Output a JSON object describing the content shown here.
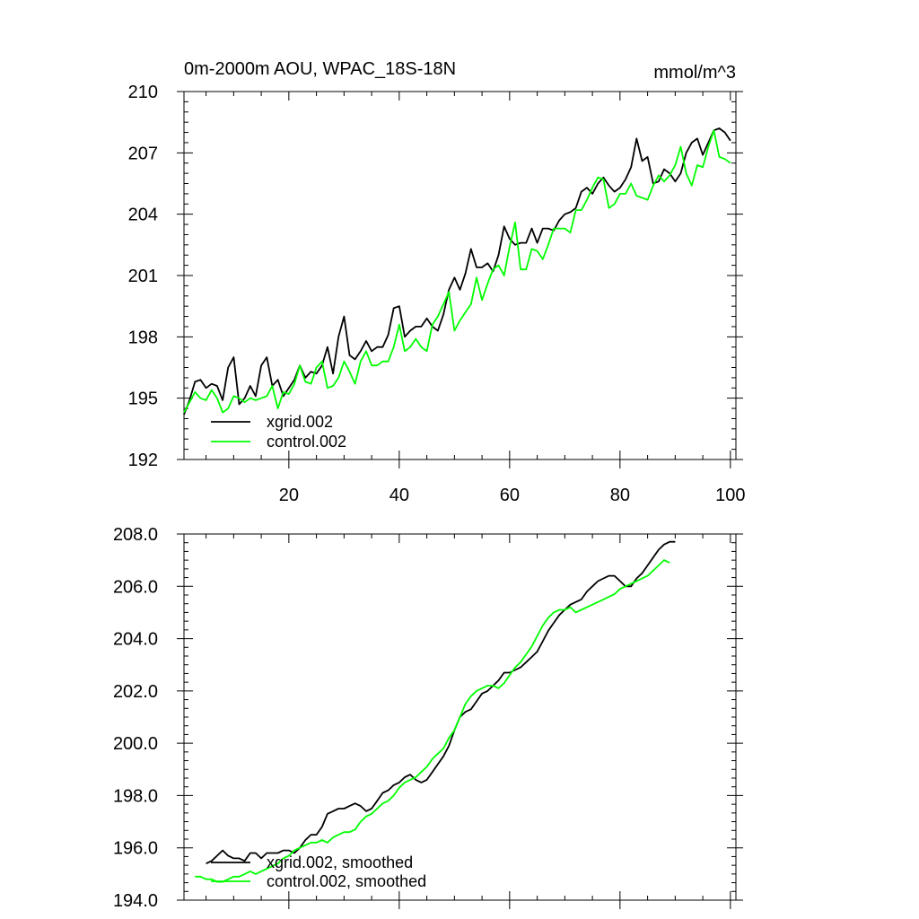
{
  "chart_data": [
    {
      "type": "line",
      "title": "0m-2000m AOU, WPAC_18S-18N",
      "units": "mmol/m^3",
      "xlabel": "",
      "ylabel": "",
      "xlim": [
        1,
        101
      ],
      "ylim": [
        192,
        210
      ],
      "xticks": [
        20,
        40,
        60,
        80,
        100
      ],
      "xtick_labels": [
        "20",
        "40",
        "60",
        "80",
        "100"
      ],
      "yticks": [
        192,
        195,
        198,
        201,
        204,
        207,
        210
      ],
      "ytick_labels": [
        "192",
        "195",
        "198",
        "201",
        "204",
        "207",
        "210"
      ],
      "legend_position": "bottom-left",
      "series": [
        {
          "name": "xgrid.002",
          "color": "#000000",
          "x_start": 1,
          "values": [
            194.2,
            194.9,
            195.8,
            195.9,
            195.5,
            195.7,
            195.6,
            194.9,
            196.5,
            197.0,
            194.7,
            195.0,
            195.6,
            195.1,
            196.6,
            197.0,
            195.6,
            195.9,
            195.1,
            195.5,
            195.9,
            196.6,
            196.0,
            196.3,
            196.2,
            196.6,
            197.5,
            196.2,
            198.0,
            199.0,
            197.1,
            196.9,
            197.3,
            197.8,
            197.3,
            197.5,
            197.5,
            198.1,
            199.4,
            199.5,
            198.0,
            198.3,
            198.5,
            198.5,
            198.9,
            198.5,
            198.3,
            199.1,
            200.3,
            200.9,
            200.3,
            201.1,
            202.3,
            201.4,
            201.4,
            201.6,
            201.2,
            202.0,
            203.4,
            202.8,
            202.5,
            202.6,
            202.6,
            203.3,
            202.6,
            203.3,
            203.3,
            203.2,
            203.7,
            204.0,
            204.1,
            204.3,
            205.1,
            205.3,
            205.0,
            205.5,
            205.8,
            205.4,
            205.1,
            205.3,
            205.7,
            206.3,
            207.7,
            206.6,
            206.8,
            205.5,
            205.6,
            206.2,
            206.0,
            205.6,
            206.0,
            207.0,
            207.5,
            207.7,
            206.9,
            207.5,
            208.1,
            208.2,
            208.0,
            207.6
          ]
        },
        {
          "name": "control.002",
          "color": "#00ff00",
          "x_start": 1,
          "values": [
            194.3,
            194.8,
            195.3,
            195.0,
            194.9,
            195.4,
            195.0,
            194.3,
            194.5,
            195.1,
            195.0,
            194.8,
            195.0,
            194.9,
            195.0,
            195.1,
            195.6,
            194.5,
            195.3,
            195.2,
            195.7,
            196.6,
            195.8,
            195.7,
            196.5,
            196.8,
            195.5,
            195.6,
            196.0,
            196.8,
            196.3,
            195.7,
            196.8,
            197.3,
            196.6,
            196.6,
            196.8,
            196.8,
            197.5,
            198.6,
            197.3,
            197.5,
            197.9,
            197.5,
            197.3,
            198.6,
            199.0,
            199.6,
            200.2,
            198.3,
            198.8,
            199.2,
            199.6,
            200.9,
            199.8,
            200.6,
            201.3,
            201.5,
            201.0,
            202.4,
            203.6,
            201.3,
            201.3,
            202.3,
            202.2,
            201.8,
            202.5,
            203.3,
            203.3,
            203.3,
            203.1,
            204.2,
            204.2,
            204.7,
            205.3,
            205.8,
            205.7,
            204.3,
            204.5,
            205.0,
            205.0,
            205.5,
            204.9,
            204.8,
            204.7,
            205.4,
            205.9,
            205.6,
            205.9,
            206.4,
            207.3,
            206.0,
            205.4,
            206.4,
            206.3,
            207.3,
            208.1,
            206.8,
            206.7,
            206.5
          ]
        }
      ]
    },
    {
      "type": "line",
      "title": "",
      "xlabel": "",
      "ylabel": "",
      "xlim": [
        1,
        101
      ],
      "ylim": [
        194,
        208
      ],
      "xticks": [
        20,
        40,
        60,
        80,
        100
      ],
      "xtick_labels": [],
      "yticks": [
        194,
        196,
        198,
        200,
        202,
        204,
        206,
        208
      ],
      "ytick_labels": [
        "194.0",
        "196.0",
        "198.0",
        "200.0",
        "202.0",
        "204.0",
        "206.0",
        "208.0"
      ],
      "legend_position": "bottom-left",
      "series": [
        {
          "name": "xgrid.002, smoothed",
          "color": "#000000",
          "x_start": 5,
          "values": [
            195.4,
            195.5,
            195.7,
            195.9,
            195.7,
            195.6,
            195.6,
            195.5,
            195.8,
            195.8,
            195.6,
            195.8,
            195.8,
            195.8,
            195.9,
            195.9,
            195.8,
            196.0,
            196.3,
            196.5,
            196.5,
            196.8,
            197.3,
            197.4,
            197.5,
            197.5,
            197.6,
            197.7,
            197.6,
            197.4,
            197.5,
            197.8,
            198.1,
            198.2,
            198.4,
            198.5,
            198.7,
            198.8,
            198.6,
            198.5,
            198.6,
            198.9,
            199.2,
            199.5,
            199.9,
            200.5,
            201.0,
            201.2,
            201.3,
            201.6,
            201.9,
            202.0,
            202.2,
            202.4,
            202.7,
            202.7,
            202.8,
            202.9,
            203.1,
            203.3,
            203.5,
            203.9,
            204.3,
            204.6,
            204.9,
            205.1,
            205.3,
            205.4,
            205.5,
            205.8,
            206.0,
            206.2,
            206.3,
            206.4,
            206.4,
            206.2,
            206.0,
            206.0,
            206.3,
            206.5,
            206.8,
            207.1,
            207.4,
            207.6,
            207.7,
            207.7
          ]
        },
        {
          "name": "control.002, smoothed",
          "color": "#00ff00",
          "x_start": 3,
          "values": [
            194.9,
            194.9,
            194.8,
            194.8,
            194.7,
            194.7,
            194.8,
            194.9,
            194.9,
            195.0,
            195.1,
            195.0,
            195.1,
            195.2,
            195.3,
            195.4,
            195.6,
            195.7,
            195.9,
            196.0,
            196.1,
            196.2,
            196.2,
            196.3,
            196.2,
            196.4,
            196.5,
            196.6,
            196.6,
            196.7,
            197.0,
            197.2,
            197.3,
            197.5,
            197.7,
            197.8,
            198.0,
            198.3,
            198.5,
            198.6,
            198.7,
            198.9,
            199.1,
            199.4,
            199.6,
            199.8,
            200.2,
            200.5,
            201.0,
            201.5,
            201.8,
            202.0,
            202.1,
            202.2,
            202.2,
            202.1,
            202.3,
            202.6,
            202.9,
            203.1,
            203.4,
            203.7,
            204.1,
            204.5,
            204.8,
            205.0,
            205.1,
            205.1,
            205.2,
            205.0,
            205.1,
            205.2,
            205.3,
            205.4,
            205.5,
            205.6,
            205.7,
            205.9,
            206.0,
            206.1,
            206.2,
            206.3,
            206.4,
            206.6,
            206.8,
            207.0,
            206.9
          ]
        }
      ]
    }
  ]
}
